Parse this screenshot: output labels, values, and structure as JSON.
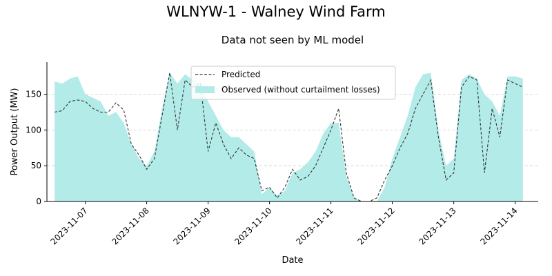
{
  "chart_data": {
    "type": "area",
    "title": "WLNYW-1 - Walney Wind Farm",
    "subtitle": "Data not seen by ML model",
    "xlabel": "Date",
    "ylabel": "Power Output (MW)",
    "xlim": [
      "2023-11-06T09:00",
      "2023-11-14T09:00"
    ],
    "ylim": [
      0,
      195
    ],
    "x_ticks": [
      "2023-11-07",
      "2023-11-08",
      "2023-11-09",
      "2023-11-10",
      "2023-11-11",
      "2023-11-12",
      "2023-11-13",
      "2023-11-14"
    ],
    "y_ticks": [
      0,
      50,
      100,
      150
    ],
    "grid": "horizontal dashed",
    "legend_position": "top-center",
    "series": [
      {
        "name": "Predicted",
        "style": "dashed line",
        "color": "#333333",
        "points": [
          [
            "2023-11-06T12:00",
            125
          ],
          [
            "2023-11-06T15:00",
            127
          ],
          [
            "2023-11-06T18:00",
            140
          ],
          [
            "2023-11-06T21:00",
            142
          ],
          [
            "2023-11-07T00:00",
            140
          ],
          [
            "2023-11-07T03:00",
            130
          ],
          [
            "2023-11-07T06:00",
            125
          ],
          [
            "2023-11-07T09:00",
            125
          ],
          [
            "2023-11-07T12:00",
            138
          ],
          [
            "2023-11-07T15:00",
            128
          ],
          [
            "2023-11-07T18:00",
            80
          ],
          [
            "2023-11-07T21:00",
            65
          ],
          [
            "2023-11-08T00:00",
            45
          ],
          [
            "2023-11-08T03:00",
            60
          ],
          [
            "2023-11-08T06:00",
            120
          ],
          [
            "2023-11-08T09:00",
            180
          ],
          [
            "2023-11-08T12:00",
            100
          ],
          [
            "2023-11-08T15:00",
            170
          ],
          [
            "2023-11-08T18:00",
            160
          ],
          [
            "2023-11-08T21:00",
            165
          ],
          [
            "2023-11-09T00:00",
            70
          ],
          [
            "2023-11-09T03:00",
            110
          ],
          [
            "2023-11-09T06:00",
            80
          ],
          [
            "2023-11-09T09:00",
            60
          ],
          [
            "2023-11-09T12:00",
            75
          ],
          [
            "2023-11-09T15:00",
            65
          ],
          [
            "2023-11-09T18:00",
            60
          ],
          [
            "2023-11-09T21:00",
            15
          ],
          [
            "2023-11-10T00:00",
            20
          ],
          [
            "2023-11-10T03:00",
            5
          ],
          [
            "2023-11-10T06:00",
            20
          ],
          [
            "2023-11-10T09:00",
            45
          ],
          [
            "2023-11-10T12:00",
            30
          ],
          [
            "2023-11-10T15:00",
            35
          ],
          [
            "2023-11-10T18:00",
            50
          ],
          [
            "2023-11-10T21:00",
            75
          ],
          [
            "2023-11-11T00:00",
            100
          ],
          [
            "2023-11-11T03:00",
            130
          ],
          [
            "2023-11-11T06:00",
            40
          ],
          [
            "2023-11-11T09:00",
            5
          ],
          [
            "2023-11-11T12:00",
            0
          ],
          [
            "2023-11-11T15:00",
            0
          ],
          [
            "2023-11-11T18:00",
            5
          ],
          [
            "2023-11-11T21:00",
            30
          ],
          [
            "2023-11-12T00:00",
            50
          ],
          [
            "2023-11-12T03:00",
            75
          ],
          [
            "2023-11-12T06:00",
            95
          ],
          [
            "2023-11-12T09:00",
            130
          ],
          [
            "2023-11-12T12:00",
            150
          ],
          [
            "2023-11-12T15:00",
            170
          ],
          [
            "2023-11-12T18:00",
            90
          ],
          [
            "2023-11-12T21:00",
            30
          ],
          [
            "2023-11-13T00:00",
            40
          ],
          [
            "2023-11-13T03:00",
            160
          ],
          [
            "2023-11-13T06:00",
            175
          ],
          [
            "2023-11-13T09:00",
            170
          ],
          [
            "2023-11-13T12:00",
            40
          ],
          [
            "2023-11-13T15:00",
            130
          ],
          [
            "2023-11-13T18:00",
            90
          ],
          [
            "2023-11-13T21:00",
            170
          ],
          [
            "2023-11-14T00:00",
            165
          ],
          [
            "2023-11-14T03:00",
            160
          ]
        ]
      },
      {
        "name": "Observed (without curtailment losses)",
        "style": "filled area",
        "color": "#b2ebe8",
        "points": [
          [
            "2023-11-06T12:00",
            168
          ],
          [
            "2023-11-06T15:00",
            165
          ],
          [
            "2023-11-06T18:00",
            172
          ],
          [
            "2023-11-06T21:00",
            175
          ],
          [
            "2023-11-07T00:00",
            150
          ],
          [
            "2023-11-07T03:00",
            145
          ],
          [
            "2023-11-07T06:00",
            140
          ],
          [
            "2023-11-07T09:00",
            120
          ],
          [
            "2023-11-07T12:00",
            125
          ],
          [
            "2023-11-07T15:00",
            110
          ],
          [
            "2023-11-07T18:00",
            80
          ],
          [
            "2023-11-07T21:00",
            60
          ],
          [
            "2023-11-08T00:00",
            50
          ],
          [
            "2023-11-08T03:00",
            70
          ],
          [
            "2023-11-08T06:00",
            130
          ],
          [
            "2023-11-08T09:00",
            180
          ],
          [
            "2023-11-08T12:00",
            165
          ],
          [
            "2023-11-08T15:00",
            178
          ],
          [
            "2023-11-08T18:00",
            170
          ],
          [
            "2023-11-08T21:00",
            168
          ],
          [
            "2023-11-09T00:00",
            140
          ],
          [
            "2023-11-09T03:00",
            120
          ],
          [
            "2023-11-09T06:00",
            100
          ],
          [
            "2023-11-09T09:00",
            90
          ],
          [
            "2023-11-09T12:00",
            90
          ],
          [
            "2023-11-09T15:00",
            80
          ],
          [
            "2023-11-09T18:00",
            70
          ],
          [
            "2023-11-09T21:00",
            10
          ],
          [
            "2023-11-10T00:00",
            20
          ],
          [
            "2023-11-10T03:00",
            8
          ],
          [
            "2023-11-10T06:00",
            15
          ],
          [
            "2023-11-10T09:00",
            40
          ],
          [
            "2023-11-10T12:00",
            45
          ],
          [
            "2023-11-10T15:00",
            55
          ],
          [
            "2023-11-10T18:00",
            70
          ],
          [
            "2023-11-10T21:00",
            95
          ],
          [
            "2023-11-11T00:00",
            110
          ],
          [
            "2023-11-11T03:00",
            110
          ],
          [
            "2023-11-11T06:00",
            35
          ],
          [
            "2023-11-11T09:00",
            5
          ],
          [
            "2023-11-11T12:00",
            0
          ],
          [
            "2023-11-11T15:00",
            0
          ],
          [
            "2023-11-11T18:00",
            0
          ],
          [
            "2023-11-11T21:00",
            20
          ],
          [
            "2023-11-12T00:00",
            60
          ],
          [
            "2023-11-12T03:00",
            90
          ],
          [
            "2023-11-12T06:00",
            120
          ],
          [
            "2023-11-12T09:00",
            160
          ],
          [
            "2023-11-12T12:00",
            178
          ],
          [
            "2023-11-12T15:00",
            180
          ],
          [
            "2023-11-12T18:00",
            100
          ],
          [
            "2023-11-12T21:00",
            50
          ],
          [
            "2023-11-13T00:00",
            60
          ],
          [
            "2023-11-13T03:00",
            170
          ],
          [
            "2023-11-13T06:00",
            178
          ],
          [
            "2023-11-13T09:00",
            172
          ],
          [
            "2023-11-13T12:00",
            150
          ],
          [
            "2023-11-13T15:00",
            140
          ],
          [
            "2023-11-13T18:00",
            120
          ],
          [
            "2023-11-13T21:00",
            175
          ],
          [
            "2023-11-14T00:00",
            175
          ],
          [
            "2023-11-14T03:00",
            172
          ]
        ]
      }
    ]
  }
}
